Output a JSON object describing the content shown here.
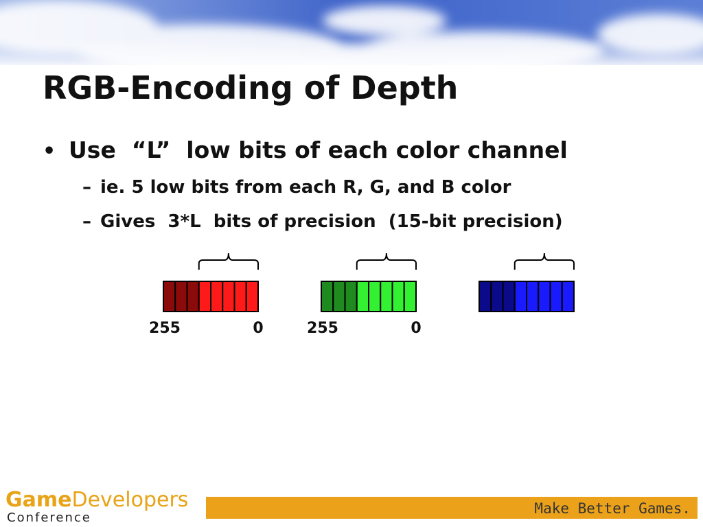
{
  "slide": {
    "title": "RGB-Encoding of Depth",
    "bullet": {
      "marker": "•",
      "text": "Use  “L”  low bits of each color channel"
    },
    "sub_bullets": [
      {
        "marker": "–",
        "text": "ie. 5 low bits from each R, G, and B color"
      },
      {
        "marker": "–",
        "text": "Gives  3*L  bits of precision  (15-bit precision)"
      }
    ],
    "diagram": {
      "red_labels": [
        "255",
        "0"
      ],
      "green_labels": [
        "255",
        "0"
      ]
    }
  },
  "footer": {
    "logo_game": "Game",
    "logo_developers": "Developers",
    "logo_conference": "Conference",
    "tagline": "Make Better Games."
  }
}
